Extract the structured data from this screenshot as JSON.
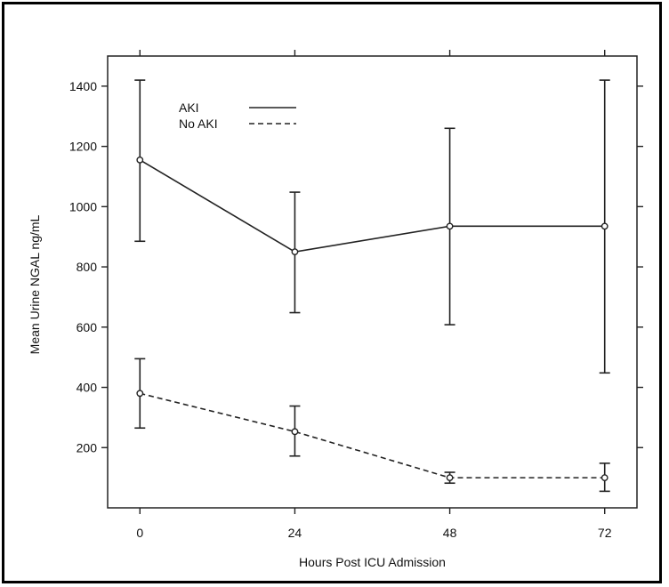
{
  "chart_data": {
    "type": "line",
    "title": "",
    "xlabel": "Hours Post ICU Admission",
    "ylabel": "Mean Urine NGAL ng/mL",
    "x": [
      0,
      24,
      48,
      72
    ],
    "x_tick_labels": [
      "0",
      "24",
      "48",
      "72"
    ],
    "y_ticks": [
      200,
      400,
      600,
      800,
      1000,
      1200,
      1400
    ],
    "y_tick_labels": [
      "200",
      "400",
      "600",
      "800",
      "1000",
      "1200",
      "1400"
    ],
    "xlim": [
      -5,
      77
    ],
    "ylim": [
      0,
      1500
    ],
    "grid": false,
    "legend_position": "top-left",
    "series": [
      {
        "name": "AKI",
        "line_style": "solid",
        "values": [
          1155,
          850,
          935,
          935
        ],
        "error_low": [
          885,
          648,
          608,
          448
        ],
        "error_high": [
          1420,
          1048,
          1260,
          1420
        ]
      },
      {
        "name": "No AKI",
        "line_style": "dashed",
        "values": [
          380,
          253,
          100,
          100
        ],
        "error_low": [
          265,
          172,
          82,
          55
        ],
        "error_high": [
          495,
          338,
          118,
          148
        ]
      }
    ]
  }
}
